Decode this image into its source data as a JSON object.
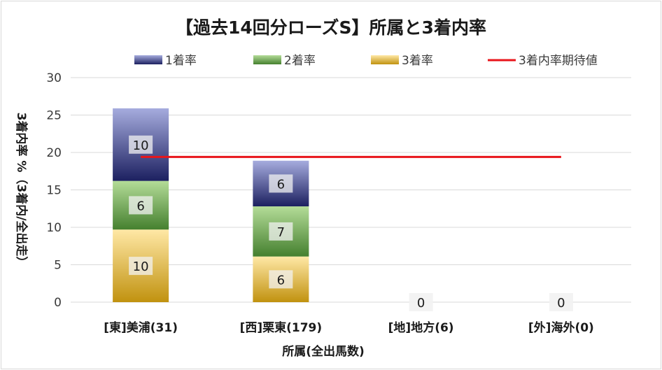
{
  "chart_data": {
    "type": "bar",
    "stacked": true,
    "title": "【過去14回分ローズS】所属と3着内率",
    "xlabel": "所属(全出馬数)",
    "ylabel": "3着内率 %（3着内/全出走）",
    "categories": [
      "[東]美浦(31)",
      "[西]栗東(179)",
      "[地]地方(6)",
      "[外]海外(0)"
    ],
    "ylim": [
      0,
      30
    ],
    "yticks": [
      0,
      5,
      10,
      15,
      20,
      25,
      30
    ],
    "grid": true,
    "legend_position": "top",
    "series": [
      {
        "name": "3着率",
        "values": [
          9.7,
          6.1,
          0,
          0
        ],
        "labels": [
          "10",
          "6",
          "0",
          "0"
        ],
        "color": "#e8c25a"
      },
      {
        "name": "2着率",
        "values": [
          6.5,
          6.7,
          0,
          0
        ],
        "labels": [
          "6",
          "7",
          "",
          ""
        ],
        "color": "#77b25a"
      },
      {
        "name": "1着率",
        "values": [
          9.7,
          6.1,
          0,
          0
        ],
        "labels": [
          "10",
          "6",
          "",
          ""
        ],
        "color": "#5b63a8"
      }
    ],
    "reference_line": {
      "name": "3着内率期待値",
      "value": 19.4,
      "color": "#e8151b"
    }
  }
}
